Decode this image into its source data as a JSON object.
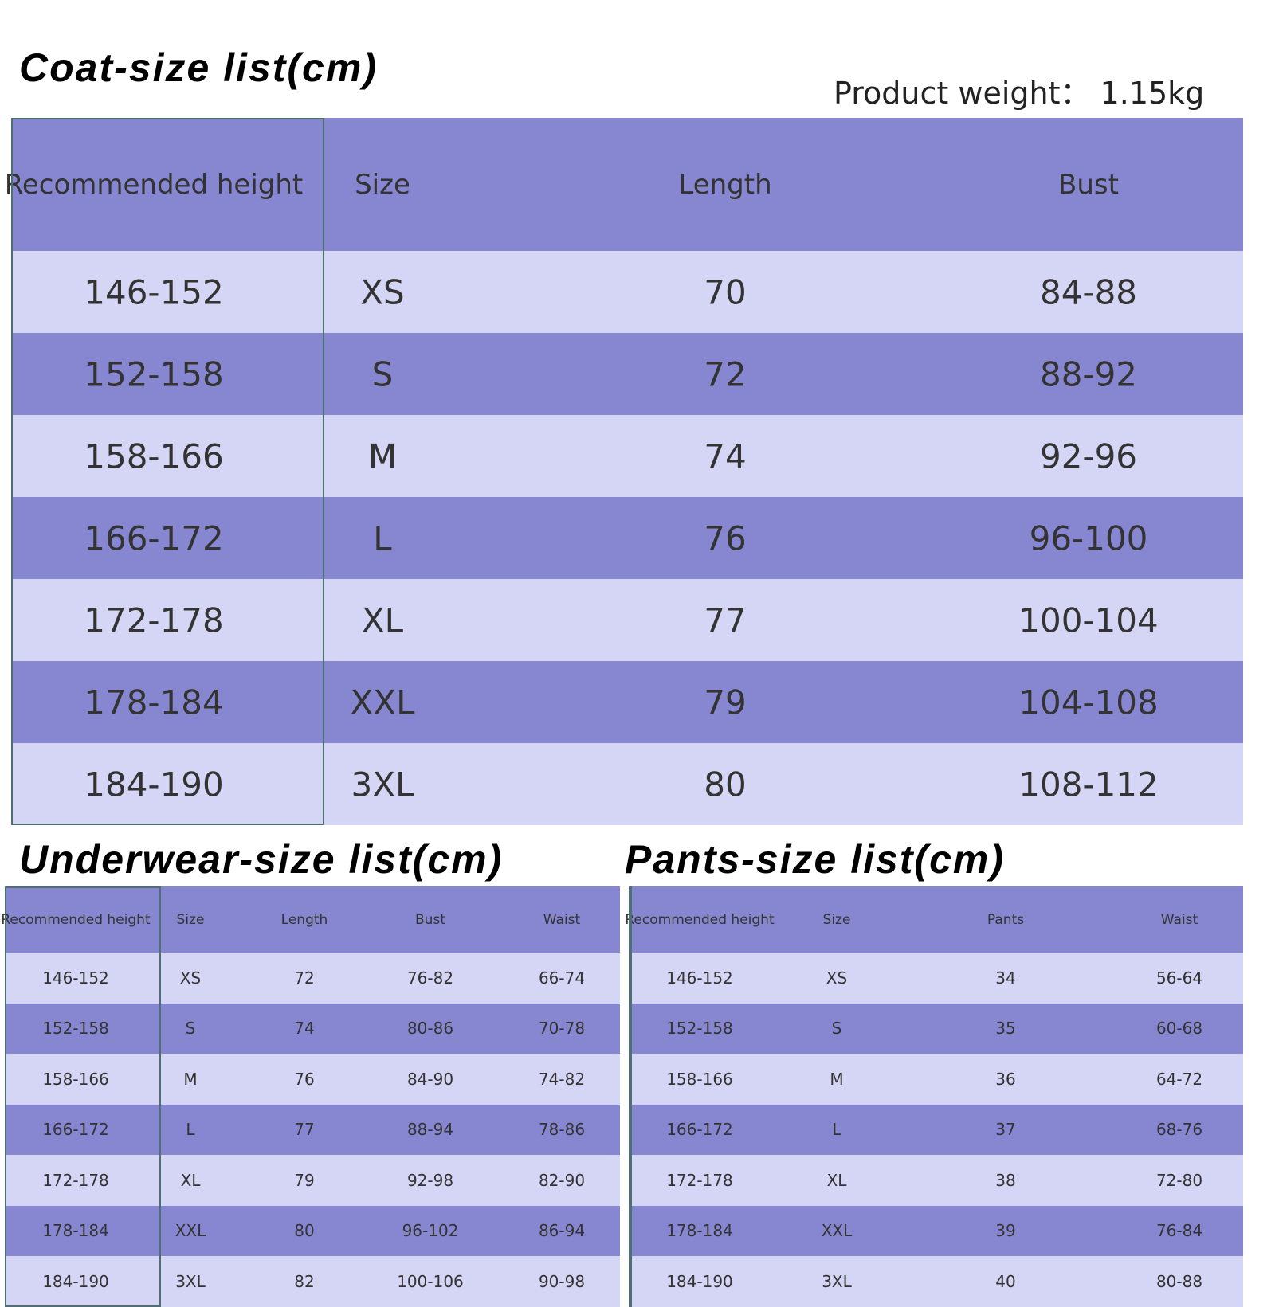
{
  "coat": {
    "title": "Coat-size list(cm)",
    "weight": "Product weight：  1.15kg",
    "header": [
      "Recommended height",
      "Size",
      "Length",
      "Bust"
    ],
    "rows": [
      [
        "146-152",
        "XS",
        "70",
        "84-88"
      ],
      [
        "152-158",
        "S",
        "72",
        "88-92"
      ],
      [
        "158-166",
        "M",
        "74",
        "92-96"
      ],
      [
        "166-172",
        "L",
        "76",
        "96-100"
      ],
      [
        "172-178",
        "XL",
        "77",
        "100-104"
      ],
      [
        "178-184",
        "XXL",
        "79",
        "104-108"
      ],
      [
        "184-190",
        "3XL",
        "80",
        "108-112"
      ]
    ]
  },
  "underwear": {
    "title": "Underwear-size list(cm)",
    "header": [
      "Recommended height",
      "Size",
      "Length",
      "Bust",
      "Waist"
    ],
    "rows": [
      [
        "146-152",
        "XS",
        "72",
        "76-82",
        "66-74"
      ],
      [
        "152-158",
        "S",
        "74",
        "80-86",
        "70-78"
      ],
      [
        "158-166",
        "M",
        "76",
        "84-90",
        "74-82"
      ],
      [
        "166-172",
        "L",
        "77",
        "88-94",
        "78-86"
      ],
      [
        "172-178",
        "XL",
        "79",
        "92-98",
        "82-90"
      ],
      [
        "178-184",
        "XXL",
        "80",
        "96-102",
        "86-94"
      ],
      [
        "184-190",
        "3XL",
        "82",
        "100-106",
        "90-98"
      ]
    ]
  },
  "pants": {
    "title": "Pants-size list(cm)",
    "header": [
      "Recommended height",
      "Size",
      "Pants",
      "Waist"
    ],
    "rows": [
      [
        "146-152",
        "XS",
        "34",
        "56-64"
      ],
      [
        "152-158",
        "S",
        "35",
        "60-68"
      ],
      [
        "158-166",
        "M",
        "36",
        "64-72"
      ],
      [
        "166-172",
        "L",
        "37",
        "68-76"
      ],
      [
        "172-178",
        "XL",
        "38",
        "72-80"
      ],
      [
        "178-184",
        "XXL",
        "39",
        "76-84"
      ],
      [
        "184-190",
        "3XL",
        "40",
        "80-88"
      ]
    ]
  }
}
